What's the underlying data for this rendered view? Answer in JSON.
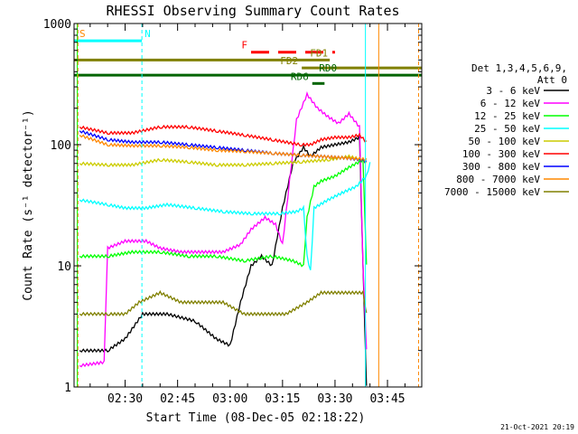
{
  "chart_data": {
    "type": "line",
    "title": "RHESSI Observing Summary Count Rates",
    "xlabel": "Start Time (08-Dec-05 02:18:22)",
    "ylabel": "Count Rate (s⁻¹ detector⁻¹)",
    "yscale": "log",
    "ylim": [
      1,
      1000
    ],
    "xlim_minutes": [
      135.4,
      234.8
    ],
    "x_ticks": [
      {
        "minute": 150,
        "label": "02:30"
      },
      {
        "minute": 165,
        "label": "02:45"
      },
      {
        "minute": 180,
        "label": "03:00"
      },
      {
        "minute": 195,
        "label": "03:15"
      },
      {
        "minute": 210,
        "label": "03:30"
      },
      {
        "minute": 225,
        "label": "03:45"
      }
    ],
    "y_ticks": [
      {
        "value": 1,
        "label": "1"
      },
      {
        "value": 10,
        "label": "10"
      },
      {
        "value": 100,
        "label": "100"
      },
      {
        "value": 1000,
        "label": "1000"
      }
    ],
    "legend": {
      "position": "right",
      "title_lines": [
        "Det 1,3,4,5,6,9,",
        "Att 0"
      ]
    },
    "series": [
      {
        "name": "3 - 6 keV",
        "color": "#000000",
        "points": [
          [
            137,
            2
          ],
          [
            145,
            2
          ],
          [
            150,
            2.5
          ],
          [
            155,
            4
          ],
          [
            162,
            4
          ],
          [
            170,
            3.5
          ],
          [
            176,
            2.5
          ],
          [
            180,
            2.2
          ],
          [
            183,
            5
          ],
          [
            186,
            10
          ],
          [
            189,
            12
          ],
          [
            192,
            10
          ],
          [
            195,
            30
          ],
          [
            198,
            70
          ],
          [
            201,
            95
          ],
          [
            203,
            80
          ],
          [
            206,
            95
          ],
          [
            210,
            100
          ],
          [
            214,
            105
          ],
          [
            217,
            115
          ],
          [
            218,
            10
          ],
          [
            219,
            1
          ]
        ]
      },
      {
        "name": "6 - 12 keV",
        "color": "#ff00ff",
        "points": [
          [
            137,
            1.5
          ],
          [
            144,
            1.6
          ],
          [
            145,
            14
          ],
          [
            150,
            16
          ],
          [
            156,
            16
          ],
          [
            160,
            14
          ],
          [
            166,
            13
          ],
          [
            172,
            13
          ],
          [
            178,
            13
          ],
          [
            183,
            15
          ],
          [
            186,
            20
          ],
          [
            190,
            25
          ],
          [
            193,
            22
          ],
          [
            195,
            15
          ],
          [
            197,
            50
          ],
          [
            199,
            160
          ],
          [
            202,
            260
          ],
          [
            205,
            200
          ],
          [
            208,
            170
          ],
          [
            211,
            150
          ],
          [
            214,
            180
          ],
          [
            217,
            140
          ],
          [
            218,
            10
          ],
          [
            219,
            2
          ]
        ]
      },
      {
        "name": "12 - 25 keV",
        "color": "#00ff00",
        "points": [
          [
            137,
            12
          ],
          [
            145,
            12
          ],
          [
            152,
            13
          ],
          [
            160,
            13
          ],
          [
            168,
            12
          ],
          [
            176,
            12
          ],
          [
            184,
            11
          ],
          [
            192,
            12
          ],
          [
            198,
            11
          ],
          [
            201,
            10
          ],
          [
            202,
            25
          ],
          [
            204,
            45
          ],
          [
            206,
            50
          ],
          [
            210,
            55
          ],
          [
            214,
            65
          ],
          [
            218,
            75
          ],
          [
            219,
            10
          ]
        ]
      },
      {
        "name": "25 - 50 keV",
        "color": "#00ffff",
        "points": [
          [
            137,
            35
          ],
          [
            145,
            32
          ],
          [
            150,
            30
          ],
          [
            156,
            30
          ],
          [
            162,
            32
          ],
          [
            170,
            30
          ],
          [
            178,
            28
          ],
          [
            186,
            27
          ],
          [
            194,
            27
          ],
          [
            199,
            28
          ],
          [
            201,
            30
          ],
          [
            202,
            12
          ],
          [
            203,
            9
          ],
          [
            204,
            30
          ],
          [
            208,
            35
          ],
          [
            212,
            40
          ],
          [
            216,
            45
          ],
          [
            219,
            55
          ],
          [
            220,
            70
          ]
        ]
      },
      {
        "name": "50 - 100 keV",
        "color": "#cccc00",
        "points": [
          [
            137,
            70
          ],
          [
            145,
            68
          ],
          [
            152,
            68
          ],
          [
            160,
            75
          ],
          [
            168,
            72
          ],
          [
            176,
            68
          ],
          [
            184,
            68
          ],
          [
            192,
            70
          ],
          [
            200,
            72
          ],
          [
            208,
            75
          ],
          [
            214,
            80
          ],
          [
            218,
            75
          ],
          [
            219,
            70
          ]
        ]
      },
      {
        "name": "100 - 300 keV",
        "color": "#ff0000",
        "points": [
          [
            137,
            140
          ],
          [
            145,
            125
          ],
          [
            152,
            125
          ],
          [
            160,
            140
          ],
          [
            168,
            140
          ],
          [
            176,
            130
          ],
          [
            184,
            120
          ],
          [
            192,
            110
          ],
          [
            200,
            100
          ],
          [
            203,
            100
          ],
          [
            206,
            110
          ],
          [
            210,
            115
          ],
          [
            214,
            115
          ],
          [
            217,
            120
          ],
          [
            219,
            105
          ]
        ]
      },
      {
        "name": "300 - 800 keV",
        "color": "#0000ff",
        "points": [
          [
            137,
            130
          ],
          [
            145,
            110
          ],
          [
            152,
            105
          ],
          [
            160,
            105
          ],
          [
            168,
            100
          ],
          [
            176,
            95
          ],
          [
            184,
            90
          ],
          [
            192,
            85
          ],
          [
            200,
            82
          ],
          [
            206,
            80
          ],
          [
            212,
            78
          ],
          [
            218,
            75
          ],
          [
            219,
            72
          ]
        ]
      },
      {
        "name": "800 - 7000 keV",
        "color": "#ff8800",
        "points": [
          [
            137,
            120
          ],
          [
            145,
            100
          ],
          [
            152,
            98
          ],
          [
            160,
            98
          ],
          [
            168,
            95
          ],
          [
            176,
            90
          ],
          [
            184,
            88
          ],
          [
            192,
            85
          ],
          [
            200,
            82
          ],
          [
            206,
            80
          ],
          [
            212,
            78
          ],
          [
            218,
            76
          ],
          [
            219,
            75
          ]
        ]
      },
      {
        "name": "7000 - 15000 keV",
        "color": "#808000",
        "points": [
          [
            137,
            4
          ],
          [
            145,
            4
          ],
          [
            150,
            4
          ],
          [
            154,
            5
          ],
          [
            160,
            6
          ],
          [
            166,
            5
          ],
          [
            172,
            5
          ],
          [
            178,
            5
          ],
          [
            184,
            4
          ],
          [
            190,
            4
          ],
          [
            196,
            4
          ],
          [
            202,
            5
          ],
          [
            206,
            6
          ],
          [
            212,
            6
          ],
          [
            218,
            6
          ],
          [
            219,
            4
          ]
        ]
      }
    ],
    "flags": [
      {
        "label": "S",
        "color": "#ff8800",
        "x": [
          135.4,
          136.2
        ],
        "y": 720
      },
      {
        "label": "N",
        "color": "#00ffff",
        "x": [
          135.4,
          154.8
        ],
        "y": 720
      },
      {
        "label": "F",
        "color": "#ff0000",
        "x": [
          186,
          210
        ],
        "y": 580
      },
      {
        "label": "FD1",
        "color": "#808000",
        "x": [
          135.4,
          208.5
        ],
        "y": 500
      },
      {
        "label": "FD2",
        "color": "#808000",
        "x": [
          200.5,
          234.8
        ],
        "y": 430
      },
      {
        "label": "RD0",
        "color": "#006400",
        "x": [
          135.4,
          234.8
        ],
        "y": 375
      },
      {
        "label": "RD6",
        "color": "#006400",
        "x": [
          203.5,
          207
        ],
        "y": 320
      }
    ],
    "vertical_markers": [
      {
        "minute": 136.3,
        "color": "#00ff00",
        "style": "solid"
      },
      {
        "minute": 136.5,
        "color": "#ff8800",
        "style": "dashed"
      },
      {
        "minute": 154.8,
        "color": "#00ffff",
        "style": "dashed"
      },
      {
        "minute": 218.7,
        "color": "#00ffff",
        "style": "solid"
      },
      {
        "minute": 222.5,
        "color": "#ff8800",
        "style": "solid"
      },
      {
        "minute": 233.9,
        "color": "#ff8800",
        "style": "dashed"
      }
    ]
  },
  "footer_date": "21-Oct-2021 20:19"
}
